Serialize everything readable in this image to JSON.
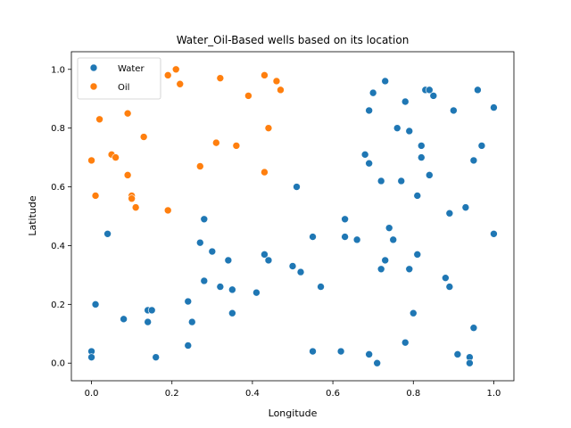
{
  "chart_data": {
    "type": "scatter",
    "title": "Water_Oil-Based wells based on its location",
    "xlabel": "Longitude",
    "ylabel": "Latitude",
    "xlim": [
      -0.05,
      1.05
    ],
    "ylim": [
      -0.06,
      1.06
    ],
    "xticks": [
      0.0,
      0.2,
      0.4,
      0.6,
      0.8,
      1.0
    ],
    "yticks": [
      0.0,
      0.2,
      0.4,
      0.6,
      0.8,
      1.0
    ],
    "xtick_labels": [
      "0.0",
      "0.2",
      "0.4",
      "0.6",
      "0.8",
      "1.0"
    ],
    "ytick_labels": [
      "0.0",
      "0.2",
      "0.4",
      "0.6",
      "0.8",
      "1.0"
    ],
    "grid": false,
    "legend": "top-left",
    "series": [
      {
        "name": "Water",
        "color": "#1f77b4",
        "points": [
          [
            0.0,
            0.04
          ],
          [
            0.0,
            0.02
          ],
          [
            0.01,
            0.2
          ],
          [
            0.04,
            0.44
          ],
          [
            0.08,
            0.15
          ],
          [
            0.14,
            0.18
          ],
          [
            0.14,
            0.14
          ],
          [
            0.15,
            0.18
          ],
          [
            0.16,
            0.02
          ],
          [
            0.24,
            0.21
          ],
          [
            0.24,
            0.06
          ],
          [
            0.25,
            0.14
          ],
          [
            0.27,
            0.41
          ],
          [
            0.28,
            0.49
          ],
          [
            0.28,
            0.28
          ],
          [
            0.3,
            0.38
          ],
          [
            0.32,
            0.26
          ],
          [
            0.34,
            0.35
          ],
          [
            0.35,
            0.25
          ],
          [
            0.35,
            0.17
          ],
          [
            0.41,
            0.24
          ],
          [
            0.43,
            0.37
          ],
          [
            0.44,
            0.35
          ],
          [
            0.5,
            0.33
          ],
          [
            0.51,
            0.6
          ],
          [
            0.52,
            0.31
          ],
          [
            0.55,
            0.43
          ],
          [
            0.55,
            0.04
          ],
          [
            0.57,
            0.26
          ],
          [
            0.62,
            0.04
          ],
          [
            0.63,
            0.49
          ],
          [
            0.63,
            0.43
          ],
          [
            0.66,
            0.42
          ],
          [
            0.68,
            0.71
          ],
          [
            0.69,
            0.86
          ],
          [
            0.69,
            0.68
          ],
          [
            0.69,
            0.03
          ],
          [
            0.7,
            0.92
          ],
          [
            0.71,
            0.0
          ],
          [
            0.72,
            0.62
          ],
          [
            0.72,
            0.32
          ],
          [
            0.73,
            0.96
          ],
          [
            0.73,
            0.35
          ],
          [
            0.74,
            0.46
          ],
          [
            0.75,
            0.42
          ],
          [
            0.76,
            0.8
          ],
          [
            0.77,
            0.62
          ],
          [
            0.78,
            0.89
          ],
          [
            0.78,
            0.07
          ],
          [
            0.79,
            0.79
          ],
          [
            0.79,
            0.32
          ],
          [
            0.8,
            0.17
          ],
          [
            0.81,
            0.37
          ],
          [
            0.81,
            0.57
          ],
          [
            0.82,
            0.74
          ],
          [
            0.82,
            0.7
          ],
          [
            0.83,
            0.93
          ],
          [
            0.84,
            0.93
          ],
          [
            0.84,
            0.64
          ],
          [
            0.85,
            0.91
          ],
          [
            0.88,
            0.29
          ],
          [
            0.89,
            0.26
          ],
          [
            0.89,
            0.51
          ],
          [
            0.9,
            0.86
          ],
          [
            0.91,
            0.03
          ],
          [
            0.93,
            0.53
          ],
          [
            0.94,
            0.02
          ],
          [
            0.94,
            0.0
          ],
          [
            0.95,
            0.12
          ],
          [
            0.95,
            0.69
          ],
          [
            0.96,
            0.93
          ],
          [
            0.97,
            0.74
          ],
          [
            1.0,
            0.87
          ],
          [
            1.0,
            0.44
          ]
        ]
      },
      {
        "name": "Oil",
        "color": "#ff7f0e",
        "points": [
          [
            0.0,
            0.69
          ],
          [
            0.01,
            0.57
          ],
          [
            0.02,
            0.83
          ],
          [
            0.05,
            0.71
          ],
          [
            0.06,
            0.7
          ],
          [
            0.09,
            0.64
          ],
          [
            0.09,
            0.85
          ],
          [
            0.1,
            0.57
          ],
          [
            0.1,
            0.56
          ],
          [
            0.11,
            0.53
          ],
          [
            0.13,
            0.77
          ],
          [
            0.19,
            0.98
          ],
          [
            0.19,
            0.52
          ],
          [
            0.21,
            1.0
          ],
          [
            0.22,
            0.95
          ],
          [
            0.27,
            0.67
          ],
          [
            0.31,
            0.75
          ],
          [
            0.32,
            0.97
          ],
          [
            0.36,
            0.74
          ],
          [
            0.39,
            0.91
          ],
          [
            0.43,
            0.98
          ],
          [
            0.43,
            0.65
          ],
          [
            0.44,
            0.8
          ],
          [
            0.46,
            0.96
          ],
          [
            0.47,
            0.93
          ]
        ]
      }
    ]
  }
}
